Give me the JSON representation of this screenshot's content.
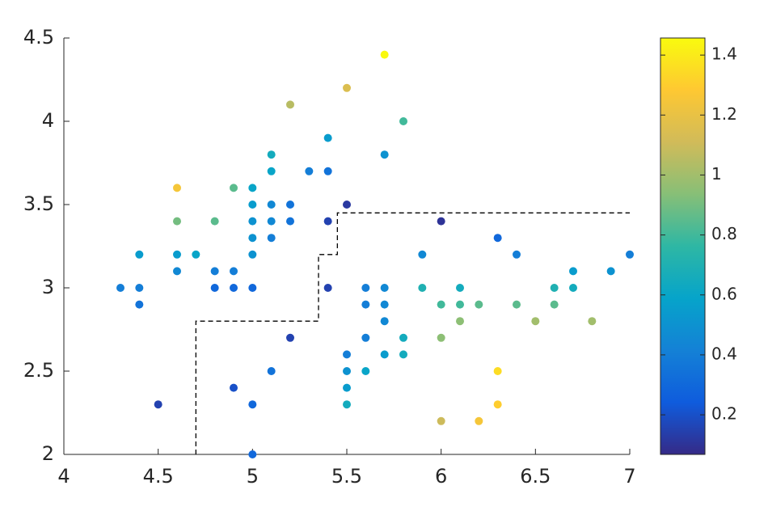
{
  "chart_data": {
    "type": "scatter",
    "x": [
      4.3,
      4.4,
      4.4,
      4.4,
      4.5,
      4.6,
      4.6,
      4.6,
      4.6,
      4.7,
      4.8,
      4.8,
      4.8,
      4.9,
      4.9,
      4.9,
      4.9,
      5.0,
      5.0,
      5.0,
      5.0,
      5.0,
      5.0,
      5.0,
      5.0,
      5.1,
      5.1,
      5.1,
      5.1,
      5.1,
      5.1,
      5.2,
      5.2,
      5.2,
      5.2,
      5.3,
      5.4,
      5.4,
      5.4,
      5.4,
      5.5,
      5.5,
      5.5,
      5.5,
      5.5,
      5.5,
      5.6,
      5.6,
      5.6,
      5.6,
      5.7,
      5.7,
      5.7,
      5.7,
      5.7,
      5.7,
      5.8,
      5.8,
      5.8,
      5.9,
      5.9,
      6.0,
      6.0,
      6.0,
      6.0,
      6.1,
      6.1,
      6.1,
      6.2,
      6.2,
      6.3,
      6.3,
      6.3,
      6.4,
      6.4,
      6.5,
      6.6,
      6.6,
      6.7,
      6.7,
      6.8,
      6.9,
      7.0
    ],
    "values": [
      3.0,
      3.2,
      3.0,
      2.9,
      2.3,
      3.6,
      3.4,
      3.2,
      3.1,
      3.2,
      3.4,
      3.1,
      3.0,
      3.6,
      3.1,
      3.0,
      2.4,
      3.6,
      3.5,
      3.4,
      3.3,
      3.2,
      3.0,
      2.3,
      2.0,
      3.8,
      3.7,
      3.5,
      3.4,
      3.3,
      2.5,
      4.1,
      3.5,
      3.4,
      2.7,
      3.7,
      3.9,
      3.7,
      3.4,
      3.0,
      4.2,
      3.5,
      2.6,
      2.5,
      2.4,
      2.3,
      3.0,
      2.9,
      2.7,
      2.5,
      4.4,
      3.8,
      3.0,
      2.9,
      2.8,
      2.6,
      4.0,
      2.7,
      2.6,
      3.2,
      3.0,
      3.4,
      2.9,
      2.7,
      2.2,
      3.0,
      2.9,
      2.8,
      2.9,
      2.2,
      3.3,
      2.5,
      2.3,
      3.2,
      2.9,
      2.8,
      3.0,
      2.9,
      3.1,
      3.0,
      2.8,
      3.1,
      3.2
    ],
    "color_values": [
      0.4,
      0.55,
      0.4,
      0.35,
      0.15,
      1.25,
      0.9,
      0.55,
      0.45,
      0.6,
      0.85,
      0.4,
      0.3,
      0.85,
      0.4,
      0.3,
      0.2,
      0.6,
      0.55,
      0.5,
      0.5,
      0.5,
      0.3,
      0.3,
      0.3,
      0.65,
      0.6,
      0.45,
      0.45,
      0.4,
      0.35,
      1.05,
      0.35,
      0.35,
      0.15,
      0.4,
      0.55,
      0.35,
      0.15,
      0.15,
      1.15,
      0.12,
      0.4,
      0.5,
      0.55,
      0.65,
      0.4,
      0.4,
      0.4,
      0.6,
      1.45,
      0.5,
      0.45,
      0.45,
      0.45,
      0.55,
      0.8,
      0.65,
      0.65,
      0.45,
      0.7,
      0.1,
      0.8,
      0.95,
      1.1,
      0.65,
      0.8,
      0.95,
      0.85,
      1.25,
      0.3,
      1.35,
      1.3,
      0.4,
      0.85,
      1.0,
      0.7,
      0.85,
      0.55,
      0.65,
      1.0,
      0.5,
      0.4
    ],
    "boundary": {
      "x": [
        4.7,
        4.7,
        5.35,
        5.35,
        5.45,
        5.45,
        7.0
      ],
      "y": [
        2.0,
        2.8,
        2.8,
        3.2,
        3.2,
        3.45,
        3.45
      ]
    },
    "xlim": [
      4,
      7
    ],
    "xticks": [
      4,
      4.5,
      5,
      5.5,
      6,
      6.5,
      7
    ],
    "ylim": [
      2,
      4.5
    ],
    "yticks": [
      2,
      2.5,
      3,
      3.5,
      4,
      4.5
    ],
    "clim": [
      0.068,
      1.457
    ],
    "cticks": [
      0.2,
      0.4,
      0.6,
      0.8,
      1,
      1.2,
      1.4
    ],
    "colormap": [
      "#352a87",
      "#0f5cdd",
      "#1481d6",
      "#06a4ca",
      "#2eb7a4",
      "#87bf77",
      "#d1bb59",
      "#fec832",
      "#f9fb0e"
    ]
  }
}
